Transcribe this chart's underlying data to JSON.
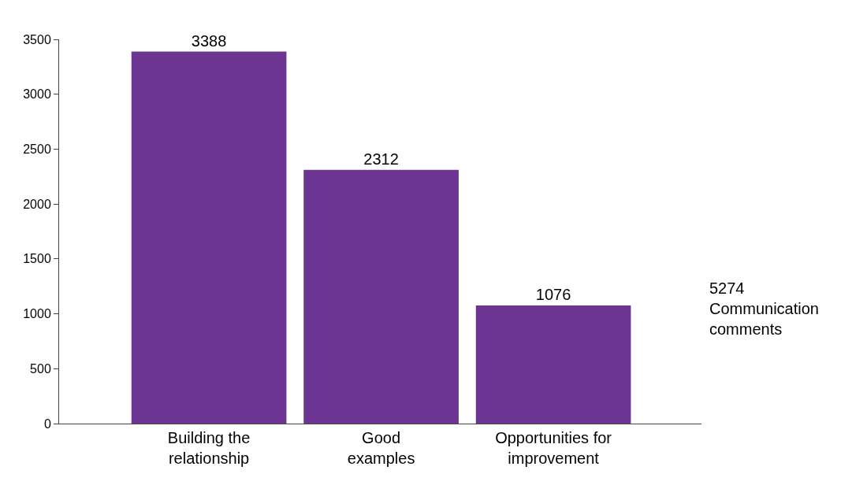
{
  "chart_data": {
    "type": "bar",
    "categories": [
      "Building the\nrelationship",
      "Good\nexamples",
      "Opportunities for\nimprovement"
    ],
    "values": [
      3388,
      2312,
      1076
    ],
    "color": "#6b3591",
    "ylim": [
      0,
      3500
    ],
    "yticks": [
      0,
      500,
      1000,
      1500,
      2000,
      2500,
      3000,
      3500
    ],
    "grid": false,
    "data_labels": true,
    "annotations": [
      "5274\nCommunication\ncomments"
    ]
  }
}
